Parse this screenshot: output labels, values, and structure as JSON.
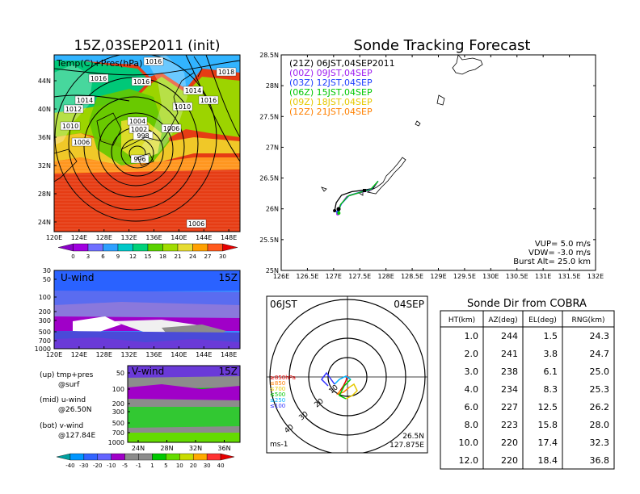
{
  "weather_map": {
    "title": "15Z,03SEP2011 (init)",
    "subtitle": "Temp(C)+Pres(hPa)",
    "lon_ticks": [
      "120E",
      "124E",
      "128E",
      "132E",
      "136E",
      "140E",
      "144E",
      "148E"
    ],
    "lat_ticks": [
      "24N",
      "28N",
      "32N",
      "36N",
      "40N",
      "44N"
    ],
    "isobar_labels": [
      "1016",
      "1016",
      "1016",
      "1018",
      "1014",
      "1014",
      "1012",
      "1010",
      "1016",
      "1010",
      "1004",
      "1002",
      "1006",
      "998",
      "1006",
      "996",
      "1006"
    ],
    "colorbar_ticks": [
      "0",
      "3",
      "6",
      "9",
      "12",
      "15",
      "18",
      "21",
      "24",
      "27",
      "30"
    ],
    "colorbar_colors": [
      "#8b00c8",
      "#a000e0",
      "#6f6fff",
      "#2ea0ff",
      "#00c8c8",
      "#00d27a",
      "#5ad200",
      "#a0dc00",
      "#e6dc32",
      "#ffa000",
      "#ff5a1e",
      "#e60000"
    ]
  },
  "u_wind": {
    "title": "U-wind",
    "time": "15Z",
    "p_ticks": [
      "30",
      "50",
      "100",
      "200",
      "300",
      "500",
      "700",
      "1000"
    ],
    "lon_ticks": [
      "120E",
      "124E",
      "128E",
      "132E",
      "136E",
      "140E",
      "144E",
      "148E"
    ]
  },
  "v_wind": {
    "title": "V-wind",
    "time": "15Z",
    "p_ticks": [
      "50",
      "100",
      "200",
      "300",
      "500",
      "700",
      "1000"
    ],
    "lat_ticks": [
      "24N",
      "28N",
      "32N",
      "36N"
    ]
  },
  "captions": {
    "line1": "(up) tmp+pres",
    "line2": "@surf",
    "line3": "(mid) u-wind",
    "line4": "@26.50N",
    "line5": "(bot) v-wind",
    "line6": "@127.84E"
  },
  "wind_colorbar": {
    "ticks": [
      "-40",
      "-30",
      "-20",
      "-10",
      "-5",
      "-1",
      "1",
      "5",
      "10",
      "20",
      "30",
      "40"
    ],
    "colors": [
      "#00a0a0",
      "#0096ff",
      "#3264ff",
      "#6464ff",
      "#a000c8",
      "#8c8c8c",
      "#8c8c8c",
      "#00c800",
      "#64dc00",
      "#c8dc00",
      "#ffaa00",
      "#ff3232",
      "#e60000"
    ]
  },
  "tracking": {
    "title": "Sonde Tracking Forecast",
    "legend": [
      {
        "label": "(21Z) 06JST,04SEP2011",
        "color": "#000000"
      },
      {
        "label": "(00Z) 09JST,04SEP",
        "color": "#a020f0"
      },
      {
        "label": "(03Z) 12JST,04SEP",
        "color": "#2040ff"
      },
      {
        "label": "(06Z) 15JST,04SEP",
        "color": "#00c800"
      },
      {
        "label": "(09Z) 18JST,04SEP",
        "color": "#e6c800"
      },
      {
        "label": "(12Z) 21JST,04SEP",
        "color": "#ff8000"
      }
    ],
    "lat_ticks": [
      "25.5N",
      "26N",
      "26.5N",
      "27N",
      "27.5N",
      "28N",
      "28.5N"
    ],
    "lat_tick_values": [
      25.5,
      26,
      26.5,
      27,
      27.5,
      28,
      28.5
    ],
    "lon_ticks": [
      "126E",
      "126.5E",
      "127E",
      "127.5E",
      "128E",
      "128.5E",
      "129E",
      "129.5E",
      "130E",
      "130.5E",
      "131E",
      "131.5E",
      "132E"
    ],
    "lon_tick_values": [
      126,
      126.5,
      127,
      127.5,
      128,
      128.5,
      129,
      129.5,
      130,
      130.5,
      131,
      131.5,
      132
    ],
    "xlim": [
      126,
      132
    ],
    "ylim": [
      25,
      28.5
    ],
    "info_line1": "VUP=  5.0 m/s",
    "info_line2": "VDW= -3.0 m/s",
    "info_line3": "Burst Alt= 25.0 km"
  },
  "chart_data": [
    {
      "type": "line",
      "title": "Sonde Tracking Forecast",
      "xlim": [
        126,
        132
      ],
      "ylim": [
        25,
        28.5
      ],
      "series": [
        {
          "name": "(21Z) 06JST,04SEP2011",
          "x": [
            127.85,
            127.75,
            127.55,
            127.35,
            127.15,
            127.05,
            127.02
          ],
          "y": [
            26.45,
            26.33,
            26.3,
            26.28,
            26.22,
            26.1,
            25.97
          ]
        },
        {
          "name": "(00Z) 09JST,04SEP",
          "x": [
            127.85,
            127.7,
            127.45,
            127.25,
            127.12,
            127.08
          ],
          "y": [
            26.45,
            26.3,
            26.25,
            26.2,
            26.05,
            25.92
          ]
        },
        {
          "name": "(03Z) 12JST,04SEP",
          "x": [
            127.85,
            127.72,
            127.5,
            127.3,
            127.15,
            127.08
          ],
          "y": [
            26.45,
            26.32,
            26.27,
            26.22,
            26.08,
            25.95
          ]
        },
        {
          "name": "(06Z) 15JST,04SEP",
          "x": [
            127.85,
            127.7,
            127.48,
            127.28,
            127.13,
            127.1
          ],
          "y": [
            26.45,
            26.31,
            26.26,
            26.21,
            26.07,
            25.93
          ]
        }
      ]
    },
    {
      "type": "table",
      "title": "Sonde Dir from COBRA",
      "columns": [
        "HT(km)",
        "AZ(deg)",
        "EL(deg)",
        "RNG(km)"
      ],
      "rows": [
        [
          "1.0",
          "244",
          "1.5",
          "24.3"
        ],
        [
          "2.0",
          "241",
          "3.8",
          "24.7"
        ],
        [
          "3.0",
          "238",
          "6.1",
          "25.0"
        ],
        [
          "4.0",
          "234",
          "8.3",
          "25.3"
        ],
        [
          "6.0",
          "227",
          "12.5",
          "26.2"
        ],
        [
          "8.0",
          "223",
          "15.8",
          "28.0"
        ],
        [
          "10.0",
          "220",
          "17.4",
          "32.3"
        ],
        [
          "12.0",
          "220",
          "18.4",
          "36.8"
        ]
      ]
    }
  ],
  "hodograph": {
    "time_label": "06JST",
    "date_label": "04SEP",
    "ring_labels": [
      "10",
      "20",
      "30",
      "40"
    ],
    "unit": "ms-1",
    "lat": "26.5N",
    "lon": "127.875E",
    "layer_labels": [
      {
        "text": "≥850hPa",
        "color": "#e60000"
      },
      {
        "text": "≤850",
        "color": "#ff8000"
      },
      {
        "text": "≤700",
        "color": "#e6c800"
      },
      {
        "text": "≤500",
        "color": "#00c800"
      },
      {
        "text": "≤250",
        "color": "#00b4ff"
      },
      {
        "text": "≤100",
        "color": "#3232ff"
      }
    ]
  },
  "cobra_table": {
    "title": "Sonde Dir from COBRA"
  }
}
